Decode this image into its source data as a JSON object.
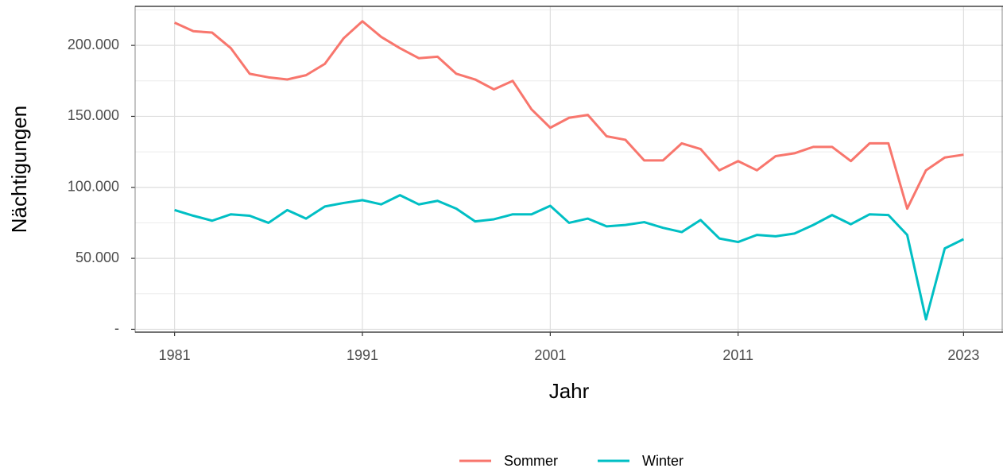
{
  "chart_data": {
    "type": "line",
    "x_label": "Jahr",
    "y_label": "Nächtigungen",
    "x": [
      1981,
      1982,
      1983,
      1984,
      1985,
      1986,
      1987,
      1988,
      1989,
      1990,
      1991,
      1992,
      1993,
      1994,
      1995,
      1996,
      1997,
      1998,
      1999,
      2000,
      2001,
      2002,
      2003,
      2004,
      2005,
      2006,
      2007,
      2008,
      2009,
      2010,
      2011,
      2012,
      2013,
      2014,
      2015,
      2016,
      2017,
      2018,
      2019,
      2020,
      2021,
      2022,
      2023
    ],
    "series": [
      {
        "name": "Sommer",
        "color": "#F8766D",
        "values": [
          216000,
          210000,
          209000,
          198000,
          180000,
          177500,
          176000,
          179000,
          187000,
          205000,
          217000,
          206000,
          198000,
          191000,
          192000,
          180000,
          176000,
          169000,
          175000,
          155000,
          142000,
          149000,
          151000,
          136000,
          133500,
          119000,
          119000,
          131000,
          127000,
          112000,
          118500,
          112000,
          122000,
          124000,
          128500,
          128500,
          118500,
          131000,
          131000,
          85000,
          112000,
          121000,
          123000
        ]
      },
      {
        "name": "Winter",
        "color": "#00BFC4",
        "values": [
          84000,
          80000,
          76500,
          81000,
          80000,
          75000,
          84000,
          78000,
          86500,
          89000,
          91000,
          88000,
          94500,
          88000,
          90500,
          85000,
          76000,
          77500,
          81000,
          81000,
          87000,
          75000,
          78000,
          72500,
          73500,
          75500,
          71500,
          68500,
          77000,
          64000,
          61500,
          66500,
          65500,
          67500,
          73500,
          80500,
          74000,
          81000,
          80500,
          66500,
          7000,
          57000,
          63500
        ]
      }
    ],
    "xlim": [
      1978.9,
      2025.1
    ],
    "xticks": [
      1981,
      1991,
      2001,
      2011,
      2023
    ],
    "ylim": [
      -2000,
      227500
    ],
    "yticks": [
      {
        "value": 0,
        "label": "-"
      },
      {
        "value": 50000,
        "label": "50.000"
      },
      {
        "value": 100000,
        "label": "100.000"
      },
      {
        "value": 150000,
        "label": "150.000"
      },
      {
        "value": 200000,
        "label": "200.000"
      }
    ],
    "y_minor_ticks": [
      25000,
      75000,
      125000,
      175000,
      225000
    ],
    "grid": true,
    "legend_position": "bottom"
  }
}
